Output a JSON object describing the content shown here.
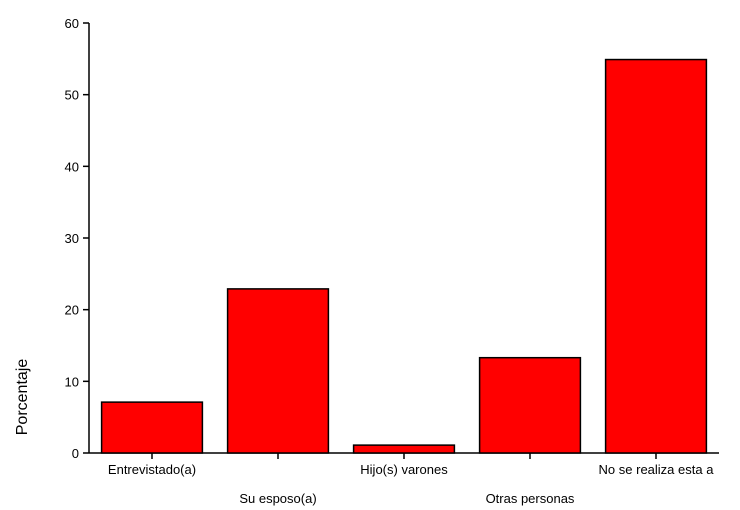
{
  "chart_data": {
    "type": "bar",
    "title": "",
    "xlabel": "",
    "ylabel": "Porcentaje",
    "ylim": [
      0,
      60
    ],
    "yticks": [
      "0",
      "10",
      "20",
      "30",
      "40",
      "50",
      "60"
    ],
    "categories": [
      "Entrevistado(a)",
      "Su esposo(a)",
      "Hijo(s) varones",
      "Otras personas",
      "No se realiza esta a"
    ],
    "values": [
      7.1,
      22.9,
      1.1,
      13.3,
      54.9
    ],
    "bar_color": "#ff0000",
    "grid": false,
    "legend": "none"
  }
}
